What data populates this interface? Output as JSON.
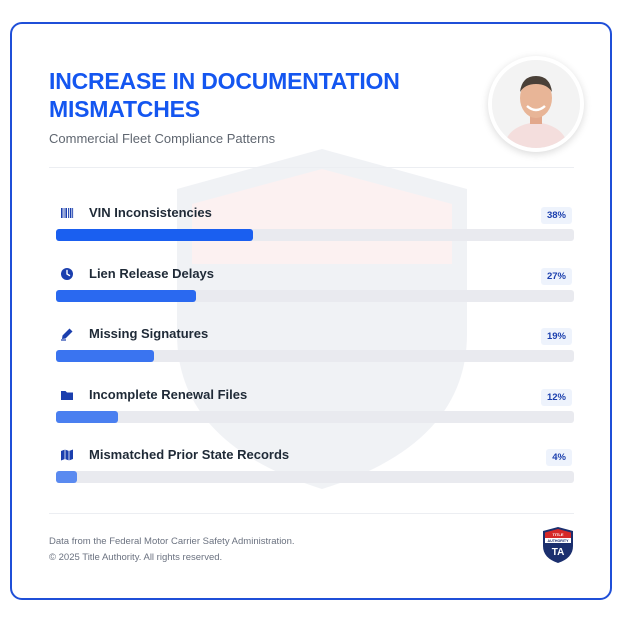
{
  "header": {
    "title": "INCREASE IN DOCUMENTATION MISMATCHES",
    "subtitle": "Commercial Fleet Compliance Patterns"
  },
  "chart_data": {
    "type": "bar",
    "orientation": "horizontal",
    "title": "INCREASE IN DOCUMENTATION MISMATCHES",
    "subtitle": "Commercial Fleet Compliance Patterns",
    "categories": [
      "VIN Inconsistencies",
      "Lien Release Delays",
      "Missing Signatures",
      "Incomplete Renewal Files",
      "Mismatched Prior State Records"
    ],
    "values": [
      38,
      27,
      19,
      12,
      4
    ],
    "value_labels": [
      "38%",
      "27%",
      "19%",
      "12%",
      "4%"
    ],
    "icons": [
      "barcode-icon",
      "clock-icon",
      "pen-icon",
      "folder-icon",
      "map-icon"
    ],
    "bar_colors": [
      "#1a5ff0",
      "#2a69f0",
      "#3a74f0",
      "#4a7ff0",
      "#5a8af0"
    ],
    "xlim": [
      0,
      100
    ]
  },
  "footer": {
    "source": "Data from the Federal Motor Carrier Safety Administration.",
    "copyright": "© 2025 Title Authority. All rights reserved."
  },
  "logo": {
    "lines": [
      "TITLE",
      "AUTHORITY",
      "TA"
    ]
  },
  "colors": {
    "accent": "#1456f0",
    "border": "#1f4fd8",
    "track": "#e9eaef",
    "logo_red": "#d62828",
    "logo_navy": "#1b2f6e"
  }
}
